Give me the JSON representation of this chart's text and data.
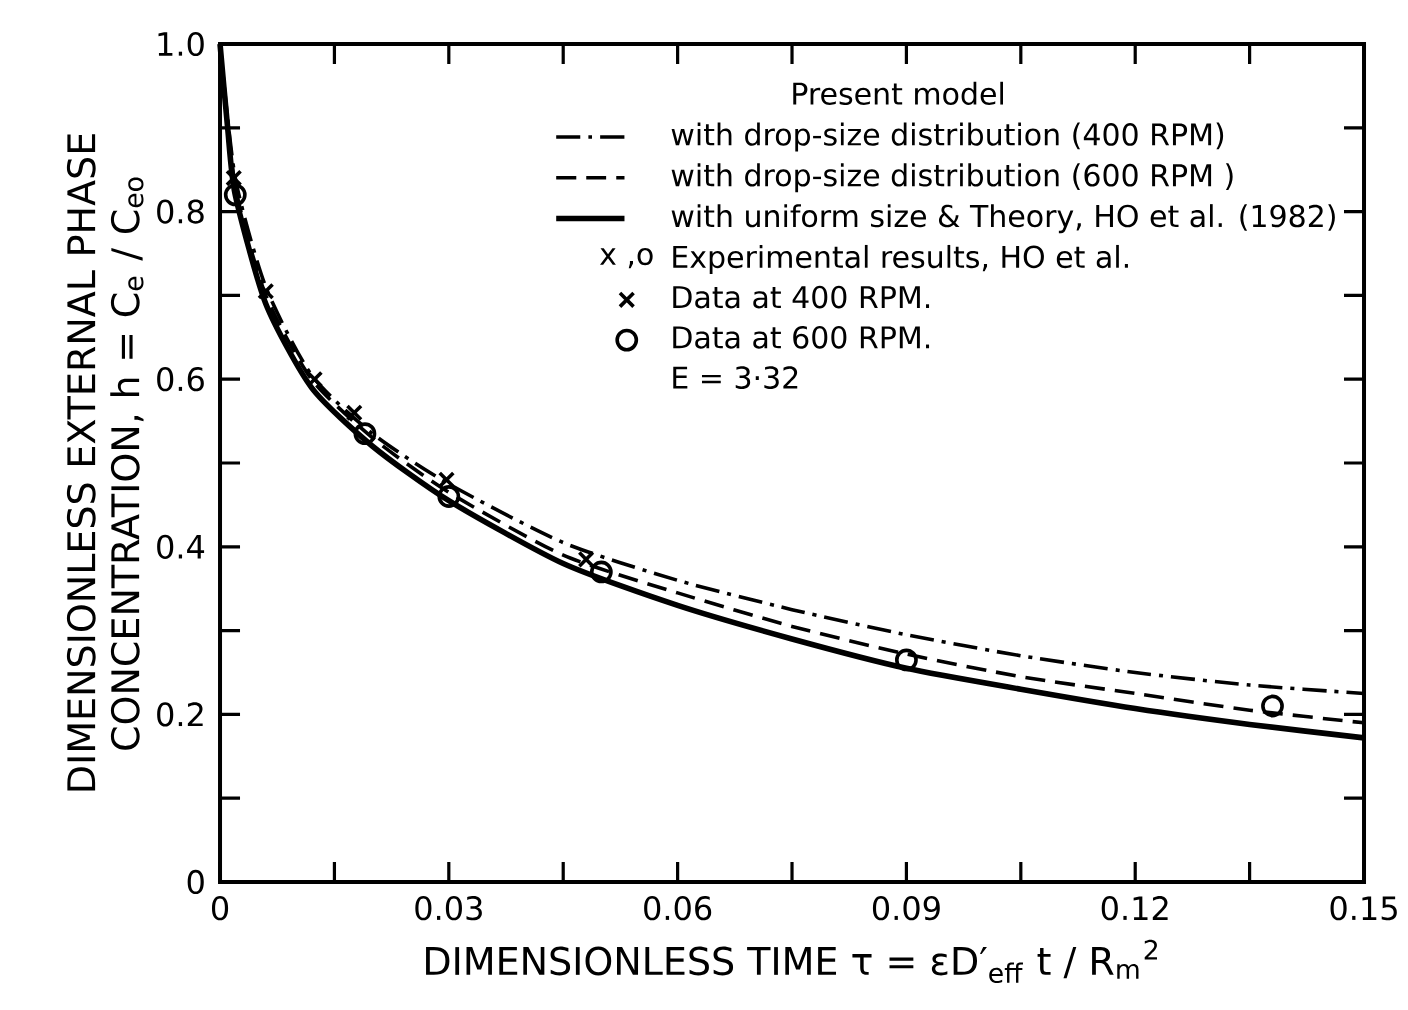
{
  "chart_data": {
    "type": "line",
    "xlabel": "DIMENSIONLESS TIME τ = εD′$_{eff}$ t / R$_{m}$$^{2}$",
    "ylabel": "DIMENSIONLESS EXTERNAL PHASE CONCENTRATION, h = C$_{e}$ / C$_{eo}$",
    "legend_title": "Present model",
    "annotations": [
      "x ,o",
      "Experimental results, HO et al.",
      "E = 3·32"
    ],
    "xlim": [
      0,
      0.15
    ],
    "ylim": [
      0,
      1.0
    ],
    "xticks": [
      0,
      {
        "value": 0.015,
        "label": null
      },
      0.03,
      {
        "value": 0.045,
        "label": null
      },
      0.06,
      {
        "value": 0.075,
        "label": null
      },
      0.09,
      {
        "value": 0.105,
        "label": null
      },
      0.12,
      {
        "value": 0.135,
        "label": null
      },
      0.15
    ],
    "yticks": [
      0,
      {
        "value": 0.1,
        "label": null
      },
      0.2,
      {
        "value": 0.3,
        "label": null
      },
      0.4,
      {
        "value": 0.5,
        "label": null
      },
      0.6,
      {
        "value": 0.7,
        "label": null
      },
      0.8,
      {
        "value": 0.9,
        "label": null
      },
      {
        "value": 1.0,
        "label": "1.0"
      }
    ],
    "grid": false,
    "legend": "top right",
    "series": [
      {
        "name": "with drop-size distribution (400 RPM)",
        "type": "line",
        "color": "#000000",
        "line_style": "dashdot",
        "marker": "none",
        "x": [
          0,
          0.002,
          0.006,
          0.012,
          0.02,
          0.03,
          0.045,
          0.06,
          0.075,
          0.09,
          0.105,
          0.12,
          0.135,
          0.15
        ],
        "values": [
          1.0,
          0.84,
          0.71,
          0.605,
          0.535,
          0.475,
          0.405,
          0.36,
          0.325,
          0.295,
          0.27,
          0.25,
          0.235,
          0.225
        ]
      },
      {
        "name": "with drop-size distribution (600 RPM )",
        "type": "line",
        "color": "#000000",
        "line_style": "dashed",
        "marker": "none",
        "x": [
          0,
          0.002,
          0.006,
          0.012,
          0.02,
          0.03,
          0.045,
          0.06,
          0.075,
          0.09,
          0.105,
          0.12,
          0.135,
          0.15
        ],
        "values": [
          1.0,
          0.83,
          0.7,
          0.6,
          0.53,
          0.465,
          0.39,
          0.345,
          0.305,
          0.272,
          0.245,
          0.225,
          0.205,
          0.19
        ]
      },
      {
        "name": "with uniform size & Theory, HO et al. (1982)",
        "type": "line",
        "color": "#000000",
        "line_style": "solid",
        "marker": "none",
        "x": [
          0,
          0.001,
          0.002,
          0.006,
          0.012,
          0.02,
          0.03,
          0.045,
          0.06,
          0.075,
          0.09,
          0.105,
          0.12,
          0.135,
          0.15
        ],
        "values": [
          1.0,
          0.9,
          0.82,
          0.69,
          0.59,
          0.52,
          0.455,
          0.38,
          0.33,
          0.29,
          0.255,
          0.23,
          0.207,
          0.188,
          0.172
        ]
      },
      {
        "name": "Data at 400 RPM.",
        "type": "scatter",
        "color": "#000000",
        "marker": "cross",
        "x": [
          0.0018,
          0.006,
          0.0124,
          0.0176,
          0.0297,
          0.048
        ],
        "values": [
          0.84,
          0.705,
          0.6,
          0.56,
          0.48,
          0.385
        ]
      },
      {
        "name": "Data at 600 RPM.",
        "type": "scatter",
        "color": "#000000",
        "marker": "circle",
        "x": [
          0.002,
          0.019,
          0.03,
          0.05,
          0.09,
          0.138
        ],
        "values": [
          0.82,
          0.535,
          0.46,
          0.37,
          0.265,
          0.21
        ]
      }
    ]
  }
}
